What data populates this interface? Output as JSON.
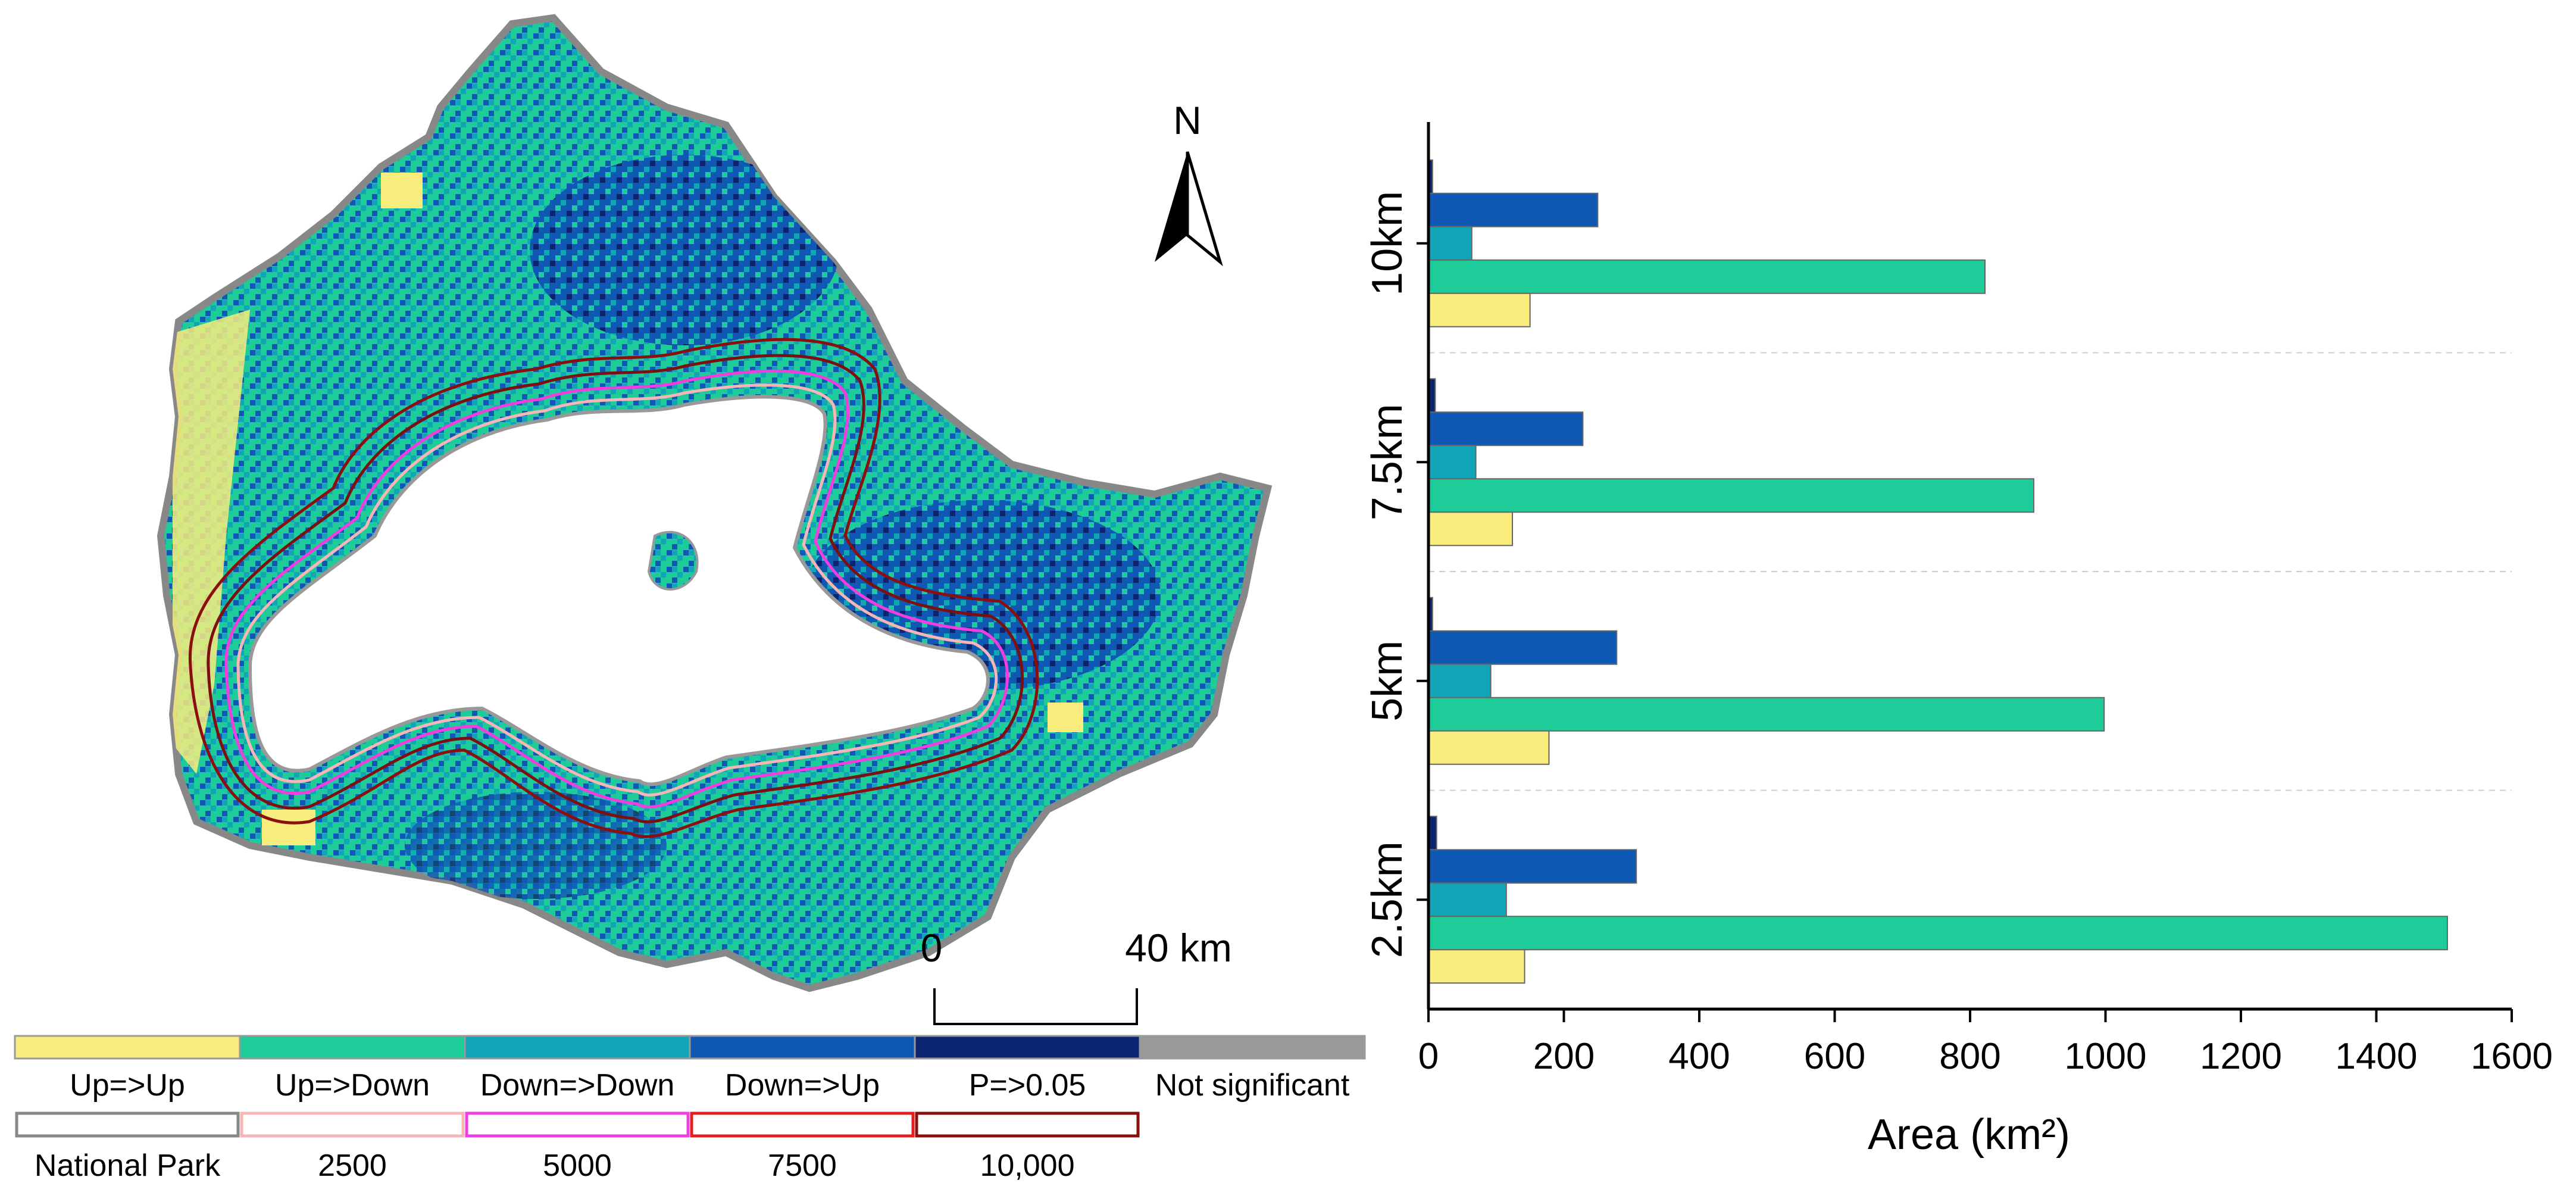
{
  "map": {
    "north_label": "N",
    "scale_bar": {
      "start_label": "0",
      "end_label": "40 km"
    },
    "legend_trend": [
      {
        "label": "Up=>Up",
        "color": "#f7ec7c"
      },
      {
        "label": "Up=>Down",
        "color": "#1ecc9a"
      },
      {
        "label": "Down=>Down",
        "color": "#12a5b8"
      },
      {
        "label": "Down=>Up",
        "color": "#0f58b4"
      },
      {
        "label": "P=>0.05",
        "color": "#0a2470"
      },
      {
        "label": "Not significant",
        "color": "#999999"
      }
    ],
    "legend_buffer": [
      {
        "label": "National Park",
        "color": "#888888"
      },
      {
        "label": "2500",
        "color": "#f7b6b6"
      },
      {
        "label": "5000",
        "color": "#ee3ee0"
      },
      {
        "label": "7500",
        "color": "#e51e1e"
      },
      {
        "label": "10,000",
        "color": "#8a0f0f"
      }
    ]
  },
  "chart_data": {
    "type": "bar",
    "orientation": "horizontal",
    "categories": [
      "10km",
      "7.5km",
      "5km",
      "2.5km"
    ],
    "series": [
      {
        "name": "P=>0.05",
        "color": "#0a2470",
        "values": [
          6,
          10,
          6,
          12
        ]
      },
      {
        "name": "Down=>Up",
        "color": "#0f58b4",
        "values": [
          250,
          228,
          278,
          307
        ]
      },
      {
        "name": "Down=>Down",
        "color": "#12a5b8",
        "values": [
          64,
          70,
          92,
          115
        ]
      },
      {
        "name": "Up=>Down",
        "color": "#1ecc9a",
        "values": [
          822,
          894,
          998,
          1505
        ]
      },
      {
        "name": "Up=>Up",
        "color": "#f7ec7c",
        "values": [
          150,
          124,
          178,
          142
        ]
      }
    ],
    "xlabel": "Area (km²)",
    "ylabel": "",
    "xlim": [
      0,
      1600
    ],
    "xticks": [
      "0",
      "200",
      "400",
      "600",
      "800",
      "1000",
      "1200",
      "1400",
      "1600"
    ],
    "grid": "horizontal dashed separators between groups"
  }
}
